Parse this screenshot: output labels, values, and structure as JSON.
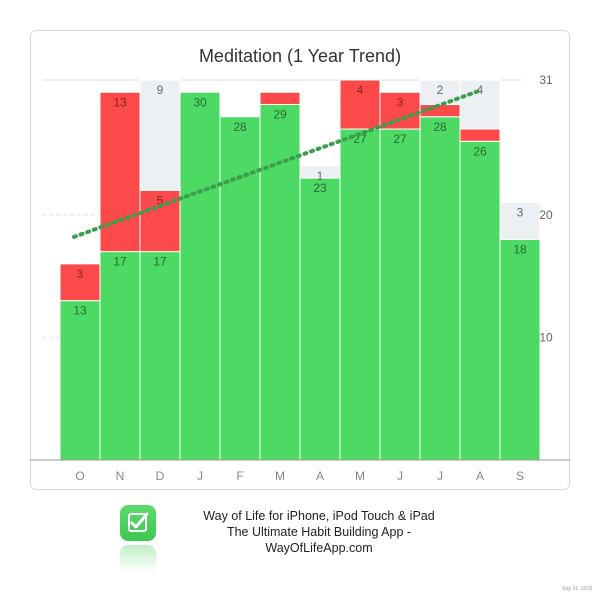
{
  "chart_data": {
    "type": "bar",
    "title": "Meditation (1 Year Trend)",
    "categories": [
      "O",
      "N",
      "D",
      "J",
      "F",
      "M",
      "A",
      "M",
      "J",
      "J",
      "A",
      "S"
    ],
    "series": [
      {
        "color": "#4cd964",
        "values": [
          13,
          17,
          17,
          30,
          28,
          29,
          23,
          27,
          27,
          28,
          26,
          18
        ]
      },
      {
        "color": "#fc4a4a",
        "values": [
          3,
          13,
          5,
          0,
          0,
          1,
          0,
          4,
          3,
          1,
          1,
          0
        ]
      },
      {
        "color": "#edf0f3",
        "values": [
          0,
          0,
          9,
          0,
          0,
          0,
          1,
          0,
          0,
          2,
          4,
          3
        ]
      }
    ],
    "value_labels": {
      "green": [
        "13",
        "17",
        "17",
        "30",
        "28",
        "29",
        "23",
        "27",
        "27",
        "28",
        "26",
        "18"
      ],
      "red": [
        "3",
        "13",
        "5",
        "",
        "",
        "",
        "",
        "4",
        "3",
        "",
        "",
        ""
      ],
      "gray": [
        "",
        "",
        "9",
        "",
        "",
        "",
        "1",
        "",
        "",
        "2",
        "4",
        "3"
      ]
    },
    "y_ticks": [
      "10",
      "20",
      "31"
    ],
    "y_tick_values": [
      10,
      20,
      31
    ],
    "ylim": [
      0,
      31
    ],
    "trend": {
      "start": 18.2,
      "end": 30.2,
      "color": "#3d9c4e"
    },
    "grid": true
  },
  "footer": {
    "line1": "Way of Life for iPhone, iPod Touch & iPad",
    "line2": "The Ultimate Habit Building App - WayOfLifeApp.com",
    "icon": "checkmark-icon",
    "timestamp": "Sep 21, 2018"
  }
}
